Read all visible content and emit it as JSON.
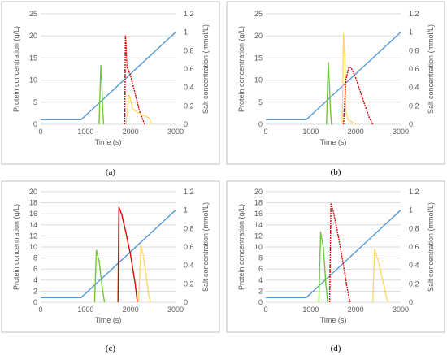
{
  "figure": {
    "panels": [
      "(a)",
      "(b)",
      "(c)",
      "(d)"
    ]
  },
  "colors": {
    "salt": "#5b9bd5",
    "green": "#70c63a",
    "red": "#e00000",
    "yellow": "#ffd966"
  },
  "chart_data": [
    {
      "panel_label": "(a)",
      "type": "line",
      "xlabel": "Time (s)",
      "ylabel": "Protein concentration (g/L)",
      "y2label": "Salt concentration (mmol/L)",
      "xlim": [
        0,
        3000
      ],
      "ylim": [
        0,
        25
      ],
      "y2lim": [
        0,
        1.2
      ],
      "xticks": [
        "0",
        "1000",
        "2000",
        "3000"
      ],
      "yticks": [
        "0",
        "5",
        "10",
        "15",
        "20",
        "25"
      ],
      "y2ticks": [
        "0",
        "0.2",
        "0.4",
        "0.6",
        "0.8",
        "1",
        "1.2"
      ],
      "series": [
        {
          "color": "salt",
          "axis": "y2",
          "style": "solid",
          "x": [
            0,
            900,
            3000
          ],
          "y": [
            0.05,
            0.05,
            1.0
          ]
        },
        {
          "color": "green",
          "axis": "y",
          "style": "solid",
          "x": [
            1300,
            1340,
            1360,
            1380,
            1400
          ],
          "y": [
            0,
            13.3,
            9,
            3,
            0
          ]
        },
        {
          "color": "red",
          "axis": "y",
          "style": "dashed",
          "x": [
            1870,
            1885,
            1895,
            1920,
            2000,
            2100,
            2200,
            2300,
            2320
          ],
          "y": [
            0,
            20,
            19,
            13,
            11,
            7,
            3,
            0.3,
            0
          ]
        },
        {
          "color": "yellow",
          "axis": "y",
          "style": "solid",
          "x": [
            1900,
            1960,
            1990,
            2050,
            2150,
            2250,
            2350,
            2430,
            2460
          ],
          "y": [
            0,
            6.5,
            6,
            3.5,
            2.7,
            2.2,
            1.8,
            1.2,
            0
          ]
        }
      ]
    },
    {
      "panel_label": "(b)",
      "type": "line",
      "xlabel": "Time (s)",
      "ylabel": "Protein concentration (g/L)",
      "y2label": "Salt concentration (mmol/L)",
      "xlim": [
        0,
        3000
      ],
      "ylim": [
        0,
        25
      ],
      "y2lim": [
        0,
        1.2
      ],
      "xticks": [
        "0",
        "1000",
        "2000",
        "3000"
      ],
      "yticks": [
        "0",
        "5",
        "10",
        "15",
        "20",
        "25"
      ],
      "y2ticks": [
        "0",
        "0.2",
        "0.4",
        "0.6",
        "0.8",
        "1",
        "1.2"
      ],
      "series": [
        {
          "color": "salt",
          "axis": "y2",
          "style": "solid",
          "x": [
            0,
            900,
            3000
          ],
          "y": [
            0.05,
            0.05,
            1.0
          ]
        },
        {
          "color": "green",
          "axis": "y",
          "style": "solid",
          "x": [
            1350,
            1390,
            1410,
            1440,
            1460
          ],
          "y": [
            0,
            14,
            10,
            3,
            0
          ]
        },
        {
          "color": "yellow",
          "axis": "y",
          "style": "solid",
          "x": [
            1700,
            1730,
            1760,
            1780,
            1820,
            1900,
            2000
          ],
          "y": [
            0,
            20.5,
            15,
            3,
            1.2,
            0.6,
            0
          ]
        },
        {
          "color": "red",
          "axis": "y",
          "style": "dashed",
          "x": [
            1730,
            1780,
            1850,
            1900,
            2000,
            2100,
            2200,
            2300,
            2380
          ],
          "y": [
            0,
            10,
            13,
            12.8,
            10.5,
            7.5,
            4.5,
            1.5,
            0
          ]
        }
      ]
    },
    {
      "panel_label": "(c)",
      "type": "line",
      "xlabel": "Time (s)",
      "ylabel": "Protein concentration (g/L)",
      "y2label": "Salt concentration (mmol/L)",
      "xlim": [
        0,
        3000
      ],
      "ylim": [
        0,
        20
      ],
      "y2lim": [
        0,
        1.2
      ],
      "xticks": [
        "0",
        "1000",
        "2000",
        "3000"
      ],
      "yticks": [
        "0",
        "2",
        "4",
        "6",
        "8",
        "10",
        "12",
        "14",
        "16",
        "18",
        "20"
      ],
      "y2ticks": [
        "0",
        "0.2",
        "0.4",
        "0.6",
        "0.8",
        "1",
        "1.2"
      ],
      "series": [
        {
          "color": "salt",
          "axis": "y2",
          "style": "solid",
          "x": [
            0,
            900,
            3000
          ],
          "y": [
            0.05,
            0.05,
            1.0
          ]
        },
        {
          "color": "green",
          "axis": "y",
          "style": "solid",
          "x": [
            1200,
            1240,
            1300,
            1380,
            1420
          ],
          "y": [
            0,
            9.4,
            7.5,
            2,
            0
          ]
        },
        {
          "color": "red",
          "axis": "y",
          "style": "solid",
          "x": [
            1720,
            1740,
            1800,
            1900,
            2000,
            2100,
            2150
          ],
          "y": [
            0,
            17.2,
            16,
            12.5,
            8.5,
            3.5,
            0
          ]
        },
        {
          "color": "yellow",
          "axis": "y",
          "style": "solid",
          "x": [
            2180,
            2230,
            2280,
            2350,
            2400,
            2440
          ],
          "y": [
            0,
            10.2,
            8.5,
            4.5,
            1.5,
            0
          ]
        }
      ]
    },
    {
      "panel_label": "(d)",
      "type": "line",
      "xlabel": "Time (s)",
      "ylabel": "Protein concentration (g/L)",
      "y2label": "Salt concentration (mmol/L)",
      "xlim": [
        0,
        3000
      ],
      "ylim": [
        0,
        20
      ],
      "y2lim": [
        0,
        1.2
      ],
      "xticks": [
        "0",
        "1000",
        "2000",
        "3000"
      ],
      "yticks": [
        "0",
        "2",
        "4",
        "6",
        "8",
        "10",
        "12",
        "14",
        "16",
        "18",
        "20"
      ],
      "y2ticks": [
        "0",
        "0.2",
        "0.4",
        "0.6",
        "0.8",
        "1",
        "1.2"
      ],
      "series": [
        {
          "color": "salt",
          "axis": "y2",
          "style": "solid",
          "x": [
            0,
            900,
            3000
          ],
          "y": [
            0.05,
            0.05,
            1.0
          ]
        },
        {
          "color": "green",
          "axis": "y",
          "style": "solid",
          "x": [
            1180,
            1220,
            1280,
            1340,
            1380
          ],
          "y": [
            0,
            12.7,
            10,
            3,
            0
          ]
        },
        {
          "color": "red",
          "axis": "y",
          "style": "dashed",
          "x": [
            1420,
            1450,
            1500,
            1600,
            1700,
            1800,
            1870
          ],
          "y": [
            0,
            17.8,
            16.5,
            12.5,
            8,
            3,
            0
          ]
        },
        {
          "color": "yellow",
          "axis": "y",
          "style": "solid",
          "x": [
            2380,
            2420,
            2500,
            2600,
            2680,
            2720
          ],
          "y": [
            0,
            9.6,
            7.5,
            4,
            1,
            0
          ]
        }
      ]
    }
  ]
}
